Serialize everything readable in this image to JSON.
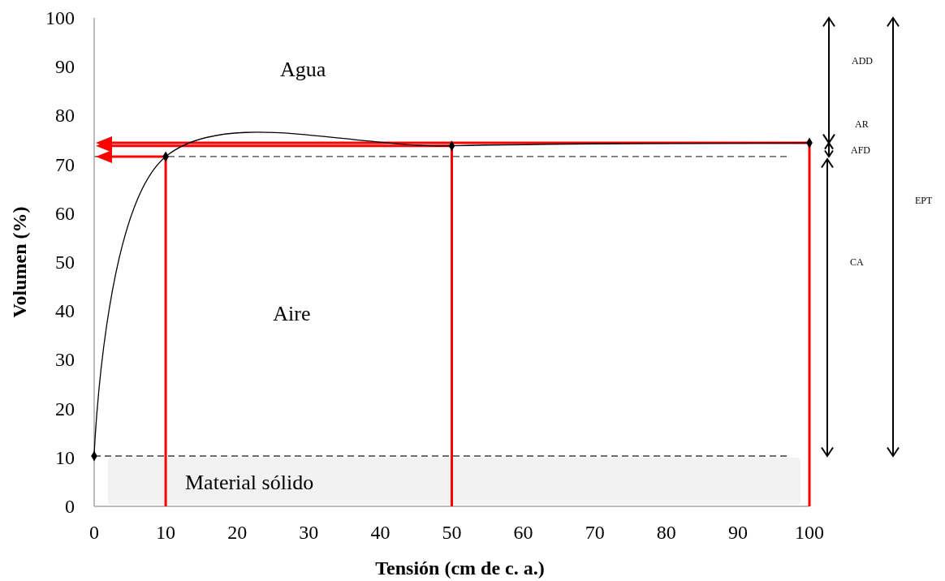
{
  "chart_data": {
    "type": "line",
    "xlabel": "Tensión (cm de c. a.)",
    "ylabel": "Volumen (%)",
    "x": [
      0,
      10,
      50,
      100
    ],
    "series": [
      {
        "color": "#000000",
        "values": [
          10.3,
          71.6,
          73.8,
          74.4
        ]
      }
    ],
    "marker": "diamond",
    "line_style": "solid",
    "grid": false,
    "xlim": [
      0,
      100
    ],
    "xticks": [
      0,
      10,
      20,
      30,
      40,
      50,
      60,
      70,
      80,
      90,
      100
    ],
    "ylim": [
      0,
      100
    ],
    "yticks": [
      0,
      10,
      20,
      30,
      40,
      50,
      60,
      70,
      80,
      90,
      100
    ],
    "ref_lines": [
      {
        "axis": "y",
        "value": 71.6,
        "color": "#404040",
        "line_style": "dashed"
      },
      {
        "axis": "y",
        "value": 10.3,
        "color": "#404040",
        "line_style": "dashed"
      }
    ],
    "bands": [
      {
        "axis": "y",
        "from": 0,
        "to": 10.3,
        "label": "Material sólido",
        "color": "#f2f2f2"
      }
    ],
    "annotations": [
      "Agua",
      "Aire",
      "ADD",
      "AR",
      "AFD",
      "CA",
      "EPT"
    ]
  }
}
